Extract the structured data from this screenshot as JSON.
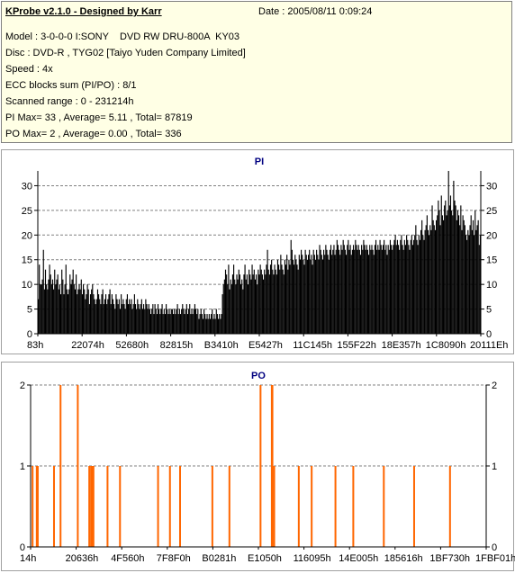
{
  "info": {
    "title": "KProbe v2.1.0 - Designed by Karr",
    "date": "Date : 2005/08/11 0:09:24",
    "model": "Model : 3-0-0-0 I:SONY    DVD RW DRU-800A  KY03",
    "disc": "Disc : DVD-R , TYG02 [Taiyo Yuden Company Limited]",
    "speed": "Speed : 4x",
    "ecc": "ECC blocks sum (PI/PO) : 8/1",
    "range": "Scanned range : 0 - 231214h",
    "pi_summary": "PI Max= 33 , Average= 5.11 , Total= 87819",
    "po_summary": "PO Max= 2 , Average= 0.00 , Total= 336"
  },
  "colors": {
    "pi_bars": "#000000",
    "po_bars": "#ff6600",
    "axis": "#000000",
    "grid": "#808080",
    "chart_title": "#000080",
    "info_bg": "#ffffe5"
  },
  "chart_data": [
    {
      "type": "bar",
      "title": "PI",
      "xlabel": "",
      "ylabel": "",
      "x_range": [
        0,
        2298516
      ],
      "ylim": [
        0,
        33
      ],
      "y_ticks": [
        0,
        5,
        10,
        15,
        20,
        25,
        30
      ],
      "x_tick_labels": [
        "83h",
        "22074h",
        "52680h",
        "82815h",
        "B3410h",
        "E5427h",
        "11C145h",
        "155F22h",
        "18E357h",
        "1C8090h",
        "20111Eh"
      ],
      "grid": true,
      "series": [
        {
          "values": [
            7,
            14,
            10,
            10,
            11,
            17,
            9,
            13,
            10,
            9,
            11,
            14,
            12,
            10,
            11,
            9,
            13,
            10,
            11,
            12,
            9,
            10,
            8,
            13,
            11,
            8,
            10,
            14,
            9,
            8,
            9,
            12,
            10,
            11,
            13,
            10,
            9,
            12,
            8,
            9,
            10,
            9,
            11,
            8,
            10,
            9,
            7,
            8,
            10,
            9,
            6,
            8,
            9,
            10,
            8,
            7,
            6,
            7,
            9,
            8,
            7,
            6,
            8,
            9,
            6,
            7,
            8,
            6,
            7,
            8,
            9,
            6,
            8,
            7,
            6,
            5,
            8,
            7,
            6,
            7,
            5,
            8,
            6,
            7,
            6,
            5,
            7,
            8,
            6,
            7,
            6,
            7,
            5,
            6,
            8,
            6,
            5,
            7,
            6,
            5,
            6,
            7,
            5,
            6,
            5,
            7,
            6,
            5,
            6,
            5,
            4,
            5,
            6,
            4,
            6,
            5,
            4,
            6,
            5,
            4,
            5,
            6,
            4,
            5,
            4,
            6,
            5,
            4,
            5,
            4,
            5,
            5,
            4,
            5,
            4,
            5,
            6,
            4,
            5,
            4,
            5,
            6,
            5,
            4,
            5,
            6,
            4,
            5,
            6,
            4,
            5,
            4,
            5,
            6,
            5,
            4,
            5,
            3,
            4,
            5,
            4,
            3,
            5,
            4,
            3,
            4,
            3,
            4,
            3,
            4,
            5,
            3,
            4,
            3,
            5,
            4,
            3,
            4,
            3,
            4,
            8,
            10,
            11,
            13,
            12,
            10,
            14,
            9,
            11,
            10,
            12,
            14,
            11,
            10,
            12,
            11,
            13,
            12,
            10,
            11,
            9,
            12,
            14,
            11,
            12,
            10,
            13,
            12,
            11,
            14,
            12,
            13,
            11,
            12,
            10,
            13,
            12,
            14,
            13,
            12,
            11,
            13,
            12,
            14,
            17,
            13,
            12,
            14,
            15,
            13,
            12,
            14,
            13,
            12,
            15,
            14,
            13,
            16,
            14,
            13,
            12,
            15,
            14,
            16,
            13,
            15,
            14,
            19,
            17,
            15,
            14,
            16,
            15,
            14,
            13,
            16,
            15,
            17,
            16,
            15,
            14,
            17,
            16,
            15,
            16,
            17,
            15,
            16,
            14,
            17,
            16,
            15,
            17,
            16,
            15,
            18,
            17,
            16,
            15,
            17,
            16,
            18,
            17,
            16,
            15,
            17,
            18,
            16,
            17,
            18,
            16,
            17,
            19,
            18,
            17,
            16,
            18,
            17,
            19,
            18,
            17,
            16,
            18,
            19,
            17,
            18,
            16,
            17,
            18,
            17,
            19,
            18,
            17,
            18,
            17,
            16,
            18,
            17,
            19,
            18,
            17,
            18,
            17,
            16,
            18,
            17,
            18,
            17,
            16,
            18,
            19,
            17,
            18,
            17,
            19,
            18,
            17,
            18,
            19,
            17,
            18,
            16,
            18,
            17,
            19,
            18,
            17,
            18,
            19,
            20,
            18,
            19,
            18,
            17,
            19,
            20,
            18,
            17,
            19,
            18,
            20,
            19,
            18,
            17,
            19,
            20,
            18,
            19,
            20,
            22,
            19,
            18,
            20,
            19,
            21,
            23,
            20,
            19,
            21,
            22,
            24,
            21,
            20,
            22,
            21,
            26,
            23,
            22,
            21,
            23,
            24,
            27,
            25,
            22,
            28,
            24,
            23,
            26,
            27,
            24,
            25,
            33,
            26,
            28,
            25,
            24,
            31,
            27,
            26,
            23,
            25,
            24,
            22,
            26,
            21,
            24,
            23,
            22,
            20,
            19,
            21,
            20,
            22,
            24,
            21,
            23,
            20,
            25,
            21,
            22,
            23,
            18,
            20
          ]
        }
      ]
    },
    {
      "type": "bar",
      "title": "PO",
      "xlabel": "",
      "ylabel": "",
      "x_range": [
        0,
        2298516
      ],
      "ylim": [
        0,
        2
      ],
      "y_ticks": [
        0,
        1,
        2
      ],
      "x_tick_labels": [
        "14h",
        "20636h",
        "4F560h",
        "7F8F0h",
        "B0281h",
        "E1050h",
        "116095h",
        "14E005h",
        "185616h",
        "1BF730h",
        "1FBF01h"
      ],
      "grid": true,
      "series": [
        {
          "x": [
            10000,
            31000,
            36000,
            118000,
            151000,
            238000,
            296000,
            305000,
            311000,
            317000,
            388000,
            451000,
            643000,
            703000,
            754000,
            917000,
            1003000,
            1160000,
            1217000,
            1220000,
            1229000,
            1353000,
            1418000,
            1538000,
            1628000,
            1782000,
            1935000,
            2116000
          ],
          "values": [
            1,
            1,
            1,
            1,
            2,
            2,
            1,
            1,
            1,
            1,
            1,
            1,
            1,
            1,
            1,
            1,
            1,
            2,
            2,
            2,
            1,
            1,
            1,
            1,
            1,
            1,
            1,
            1
          ]
        }
      ]
    }
  ]
}
